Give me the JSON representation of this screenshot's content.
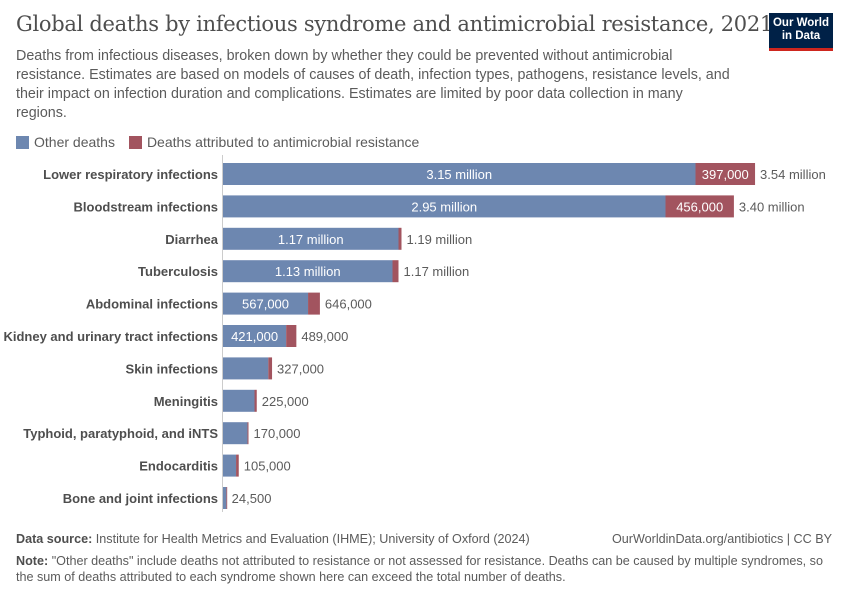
{
  "title": "Global deaths by infectious syndrome and antimicrobial resistance, 2021",
  "subtitle": "Deaths from infectious diseases, broken down by whether they could be prevented without antimicrobial resistance. Estimates are based on models of causes of death, infection types, pathogens, resistance levels, and their impact on infection duration and complications. Estimates are limited by poor data collection in many regions.",
  "logo": "Our World in Data",
  "chart_data": {
    "type": "bar",
    "orientation": "horizontal",
    "stacked": true,
    "categories": [
      "Lower respiratory infections",
      "Bloodstream infections",
      "Diarrhea",
      "Tuberculosis",
      "Abdominal infections",
      "Kidney and urinary tract infections",
      "Skin infections",
      "Meningitis",
      "Typhoid, paratyphoid, and iNTS",
      "Endocarditis",
      "Bone and joint infections"
    ],
    "series": [
      {
        "name": "Other deaths",
        "color": "#6d87b0",
        "values": [
          3150000,
          2950000,
          1170000,
          1130000,
          567000,
          421000,
          302000,
          210000,
          163000,
          87000,
          22500
        ],
        "labels": [
          "3.15 million",
          "2.95 million",
          "1.17 million",
          "1.13 million",
          "567,000",
          "421,000",
          "",
          "",
          "",
          "",
          ""
        ]
      },
      {
        "name": "Deaths attributed to antimicrobial resistance",
        "color": "#a2545f",
        "values": [
          397000,
          456000,
          20000,
          40000,
          79000,
          68000,
          25000,
          15000,
          7000,
          18000,
          2000
        ],
        "labels": [
          "397,000",
          "456,000",
          "",
          "",
          "",
          "",
          "",
          "",
          "",
          "",
          ""
        ]
      }
    ],
    "total_labels": [
      "3.54 million",
      "3.40 million",
      "1.19 million",
      "1.17 million",
      "646,000",
      "489,000",
      "327,000",
      "225,000",
      "170,000",
      "105,000",
      "24,500"
    ],
    "legend_position": "top-left",
    "grid": false
  },
  "footer": {
    "source_label": "Data source:",
    "source": "Institute for Health Metrics and Evaluation (IHME); University of Oxford (2024)",
    "url": "OurWorldinData.org/antibiotics | CC BY",
    "note_label": "Note:",
    "note": "\"Other deaths\" include deaths not attributed to resistance or not assessed for resistance. Deaths can be caused by multiple syndromes, so the sum of deaths attributed to each syndrome shown here can exceed the total number of deaths."
  }
}
